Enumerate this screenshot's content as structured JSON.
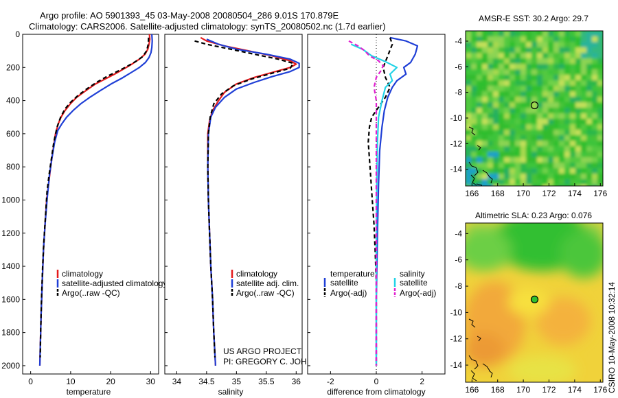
{
  "header": {
    "line1": "Argo profile: AO 5901393_45 03-May-2008 20080504_286 9.01S 170.879E",
    "line2": "Climatology: CARS2006. Satellite-adjusted climatology: synTS_20080502.nc (1.7d earlier)"
  },
  "side_text": "CSIRO 10-May-2008 10:32:14",
  "credit": {
    "line1": "US ARGO PROJECT",
    "line2": "PI: GREGORY C. JOHNSON"
  },
  "colors": {
    "climatology": "#e41a1c",
    "satellite": "#1f3fd6",
    "argo": "#000000",
    "satellite_diff": "#22d3e6",
    "argo_diff": "#e020d0"
  },
  "chart_data": [
    {
      "type": "line",
      "id": "temperature",
      "xlabel": "temperature",
      "ylabel": "",
      "xlim": [
        -2,
        32
      ],
      "ylim": [
        2050,
        0
      ],
      "xticks": [
        0,
        10,
        20,
        30
      ],
      "yticks": [
        0,
        200,
        400,
        600,
        800,
        1000,
        1200,
        1400,
        1600,
        1800,
        2000
      ],
      "legend": {
        "placement": "lower-right",
        "entries": [
          "climatology",
          "satellite-adjusted climatology",
          "Argo(..raw -QC)"
        ]
      },
      "series": [
        {
          "name": "climatology",
          "color": "climatology",
          "dash": "",
          "points": [
            [
              29.7,
              0
            ],
            [
              29.8,
              30
            ],
            [
              29.6,
              60
            ],
            [
              29.3,
              90
            ],
            [
              28.6,
              120
            ],
            [
              27.2,
              150
            ],
            [
              25.3,
              180
            ],
            [
              23.2,
              210
            ],
            [
              21.0,
              240
            ],
            [
              18.6,
              270
            ],
            [
              16.2,
              300
            ],
            [
              13.8,
              340
            ],
            [
              11.5,
              380
            ],
            [
              9.9,
              420
            ],
            [
              8.6,
              460
            ],
            [
              7.6,
              500
            ],
            [
              6.9,
              540
            ],
            [
              6.2,
              600
            ],
            [
              5.6,
              700
            ],
            [
              5.0,
              800
            ],
            [
              4.5,
              900
            ],
            [
              4.0,
              1000
            ],
            [
              3.6,
              1150
            ],
            [
              3.2,
              1300
            ],
            [
              2.9,
              1500
            ],
            [
              2.6,
              1700
            ],
            [
              2.4,
              1900
            ],
            [
              2.3,
              2000
            ]
          ]
        },
        {
          "name": "satellite-adjusted climatology",
          "color": "satellite",
          "dash": "",
          "points": [
            [
              30.3,
              0
            ],
            [
              30.4,
              40
            ],
            [
              30.3,
              80
            ],
            [
              30.1,
              110
            ],
            [
              29.6,
              140
            ],
            [
              28.7,
              170
            ],
            [
              27.2,
              200
            ],
            [
              25.2,
              230
            ],
            [
              22.8,
              265
            ],
            [
              20.1,
              300
            ],
            [
              17.4,
              340
            ],
            [
              14.8,
              380
            ],
            [
              12.5,
              420
            ],
            [
              10.6,
              460
            ],
            [
              9.0,
              500
            ],
            [
              7.8,
              540
            ],
            [
              6.8,
              580
            ],
            [
              6.0,
              650
            ],
            [
              5.3,
              750
            ],
            [
              4.7,
              850
            ],
            [
              4.1,
              1000
            ],
            [
              3.6,
              1150
            ],
            [
              3.2,
              1300
            ],
            [
              2.9,
              1500
            ],
            [
              2.6,
              1700
            ],
            [
              2.4,
              1900
            ],
            [
              2.3,
              2000
            ]
          ]
        },
        {
          "name": "Argo(..raw -QC)",
          "color": "argo",
          "dash": "6 4",
          "points": [
            [
              29.5,
              20
            ],
            [
              29.4,
              60
            ],
            [
              29.0,
              100
            ],
            [
              28.0,
              135
            ],
            [
              26.2,
              165
            ],
            [
              24.0,
              195
            ],
            [
              21.6,
              225
            ],
            [
              19.0,
              255
            ],
            [
              16.5,
              290
            ],
            [
              14.0,
              330
            ],
            [
              11.8,
              370
            ],
            [
              10.0,
              410
            ],
            [
              8.6,
              450
            ],
            [
              7.5,
              500
            ],
            [
              6.6,
              560
            ],
            [
              5.8,
              650
            ],
            [
              5.2,
              750
            ],
            [
              4.6,
              850
            ],
            [
              4.1,
              950
            ],
            [
              3.7,
              1100
            ],
            [
              3.3,
              1250
            ],
            [
              3.0,
              1400
            ],
            [
              2.7,
              1600
            ],
            [
              2.5,
              1800
            ],
            [
              2.4,
              1950
            ]
          ]
        }
      ]
    },
    {
      "type": "line",
      "id": "salinity",
      "xlabel": "salinity",
      "ylabel": "",
      "xlim": [
        33.8,
        36.1
      ],
      "ylim": [
        2050,
        0
      ],
      "xticks": [
        34,
        34.5,
        35,
        35.5,
        36
      ],
      "ytick_labels_shown": false,
      "legend": {
        "placement": "lower-right",
        "entries": [
          "climatology",
          "satellite adj. clim.",
          "Argo(..raw -QC)"
        ]
      },
      "series": [
        {
          "name": "climatology",
          "color": "climatology",
          "dash": "",
          "points": [
            [
              34.4,
              20
            ],
            [
              34.5,
              40
            ],
            [
              34.8,
              70
            ],
            [
              35.2,
              100
            ],
            [
              35.6,
              130
            ],
            [
              35.9,
              160
            ],
            [
              36.0,
              180
            ],
            [
              35.9,
              200
            ],
            [
              35.6,
              230
            ],
            [
              35.3,
              260
            ],
            [
              35.0,
              300
            ],
            [
              34.8,
              350
            ],
            [
              34.7,
              400
            ],
            [
              34.6,
              460
            ],
            [
              34.55,
              520
            ],
            [
              34.52,
              600
            ],
            [
              34.52,
              800
            ],
            [
              34.53,
              1000
            ],
            [
              34.55,
              1200
            ],
            [
              34.57,
              1400
            ],
            [
              34.6,
              1600
            ],
            [
              34.62,
              1800
            ],
            [
              34.65,
              2000
            ]
          ]
        },
        {
          "name": "satellite adj. clim.",
          "color": "satellite",
          "dash": "",
          "points": [
            [
              34.5,
              30
            ],
            [
              34.7,
              60
            ],
            [
              35.0,
              90
            ],
            [
              35.5,
              120
            ],
            [
              35.9,
              150
            ],
            [
              36.05,
              175
            ],
            [
              36.05,
              200
            ],
            [
              35.9,
              225
            ],
            [
              35.6,
              255
            ],
            [
              35.3,
              290
            ],
            [
              35.0,
              330
            ],
            [
              34.8,
              380
            ],
            [
              34.65,
              440
            ],
            [
              34.57,
              500
            ],
            [
              34.53,
              600
            ],
            [
              34.52,
              800
            ],
            [
              34.53,
              1000
            ],
            [
              34.55,
              1200
            ],
            [
              34.57,
              1400
            ],
            [
              34.6,
              1600
            ],
            [
              34.62,
              1800
            ],
            [
              34.65,
              2000
            ]
          ]
        },
        {
          "name": "Argo(..raw -QC)",
          "color": "argo",
          "dash": "6 4",
          "points": [
            [
              34.3,
              40
            ],
            [
              34.5,
              60
            ],
            [
              34.9,
              90
            ],
            [
              35.3,
              120
            ],
            [
              35.7,
              150
            ],
            [
              35.95,
              175
            ],
            [
              35.9,
              205
            ],
            [
              35.6,
              235
            ],
            [
              35.25,
              270
            ],
            [
              34.95,
              310
            ],
            [
              34.75,
              360
            ],
            [
              34.62,
              420
            ],
            [
              34.56,
              500
            ],
            [
              34.53,
              600
            ],
            [
              34.52,
              800
            ],
            [
              34.53,
              1000
            ],
            [
              34.55,
              1200
            ],
            [
              34.57,
              1400
            ],
            [
              34.6,
              1600
            ],
            [
              34.62,
              1800
            ],
            [
              34.64,
              1950
            ]
          ]
        }
      ]
    },
    {
      "type": "line",
      "id": "difference",
      "xlabel": "difference from climatology",
      "ylabel": "",
      "xlim": [
        -3,
        3
      ],
      "ylim": [
        2050,
        0
      ],
      "xticks": [
        -2,
        0,
        2
      ],
      "ytick_labels_shown": false,
      "legend": {
        "placement": "lower-center",
        "headers": [
          "temperature",
          "salinity"
        ],
        "entries": [
          "satellite",
          "Argo(-adj)",
          "satellite",
          "Argo(-adj)"
        ]
      },
      "series": [
        {
          "name": "satellite",
          "group": "temperature",
          "color": "satellite",
          "dash": "",
          "points": [
            [
              0.6,
              20
            ],
            [
              1.3,
              40
            ],
            [
              1.8,
              70
            ],
            [
              1.7,
              120
            ],
            [
              1.5,
              170
            ],
            [
              1.2,
              200
            ],
            [
              1.3,
              240
            ],
            [
              0.9,
              280
            ],
            [
              0.7,
              320
            ],
            [
              0.5,
              380
            ],
            [
              0.35,
              460
            ],
            [
              0.25,
              560
            ],
            [
              0.15,
              700
            ],
            [
              0.1,
              900
            ],
            [
              0.05,
              1200
            ],
            [
              0.0,
              1600
            ],
            [
              0.0,
              2000
            ]
          ]
        },
        {
          "name": "Argo(-adj)",
          "group": "temperature",
          "color": "argo",
          "dash": "6 4",
          "points": [
            [
              0.6,
              20
            ],
            [
              0.7,
              60
            ],
            [
              0.5,
              130
            ],
            [
              0.3,
              200
            ],
            [
              0.4,
              260
            ],
            [
              0.6,
              320
            ],
            [
              0.4,
              380
            ],
            [
              0.1,
              440
            ],
            [
              -0.2,
              500
            ],
            [
              -0.3,
              560
            ],
            [
              -0.35,
              650
            ],
            [
              -0.3,
              750
            ],
            [
              -0.25,
              850
            ],
            [
              -0.2,
              950
            ],
            [
              -0.15,
              1050
            ],
            [
              -0.1,
              1150
            ],
            [
              -0.05,
              1300
            ],
            [
              0.0,
              1500
            ],
            [
              0.0,
              2000
            ]
          ]
        },
        {
          "name": "satellite",
          "group": "salinity",
          "color": "satellite_diff",
          "dash": "",
          "points": [
            [
              -1.1,
              60
            ],
            [
              -0.6,
              90
            ],
            [
              -0.2,
              130
            ],
            [
              0.4,
              165
            ],
            [
              0.9,
              200
            ],
            [
              0.6,
              240
            ],
            [
              0.7,
              280
            ],
            [
              0.4,
              320
            ],
            [
              0.25,
              400
            ],
            [
              0.1,
              500
            ],
            [
              0.05,
              650
            ],
            [
              0.02,
              900
            ],
            [
              0.0,
              1300
            ],
            [
              0.0,
              2000
            ]
          ]
        },
        {
          "name": "Argo(-adj)",
          "group": "salinity",
          "color": "argo_diff",
          "dash": "6 4",
          "points": [
            [
              -1.2,
              40
            ],
            [
              -0.8,
              70
            ],
            [
              -0.5,
              100
            ],
            [
              -0.3,
              130
            ],
            [
              0.1,
              160
            ],
            [
              0.3,
              190
            ],
            [
              0.2,
              220
            ],
            [
              0.0,
              260
            ],
            [
              -0.1,
              320
            ],
            [
              0.0,
              400
            ],
            [
              0.0,
              2000
            ]
          ]
        }
      ]
    },
    {
      "type": "heatmap",
      "id": "sst",
      "title": "AMSR-E SST: 30.2 Argo: 29.7",
      "xlim": [
        165.5,
        176.2
      ],
      "ylim": [
        -15.3,
        -3.2
      ],
      "xticks": [
        166,
        168,
        170,
        172,
        174,
        176
      ],
      "yticks": [
        -4,
        -6,
        -8,
        -10,
        -12,
        -14
      ],
      "marker": {
        "lon": 170.879,
        "lat": -9.01
      }
    },
    {
      "type": "heatmap",
      "id": "sla",
      "title": "Altimetric SLA: 0.23 Argo: 0.076",
      "xlim": [
        165.5,
        176.2
      ],
      "ylim": [
        -15.3,
        -3.2
      ],
      "xticks": [
        166,
        168,
        170,
        172,
        174,
        176
      ],
      "yticks": [
        -4,
        -6,
        -8,
        -10,
        -12,
        -14
      ],
      "marker": {
        "lon": 170.879,
        "lat": -9.01
      }
    }
  ]
}
